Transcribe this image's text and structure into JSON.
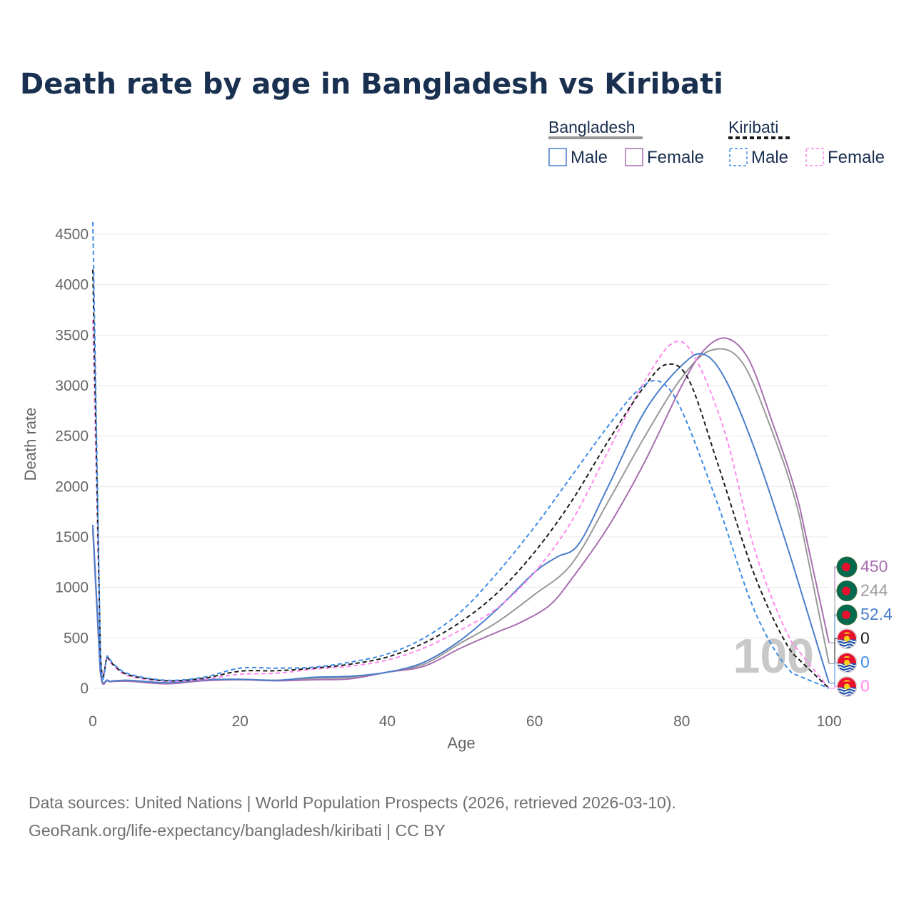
{
  "title": "Death rate by age in Bangladesh vs Kiribati",
  "legend": {
    "groups": [
      {
        "name": "Bangladesh",
        "items": [
          "Male",
          "Female"
        ]
      },
      {
        "name": "Kiribati",
        "items": [
          "Male",
          "Female"
        ]
      }
    ]
  },
  "watermark": "100",
  "source_line1": "Data sources: United Nations | World Population Prospects (2026, retrieved 2026-03-10).",
  "source_line2": "GeoRank.org/life-expectancy/bangladesh/kiribati | CC BY",
  "colors": {
    "bd_male": "#4a7ec9",
    "bd_female": "#a86fb0",
    "bd_total": "#999999",
    "ki_male": "#3d8be8",
    "ki_female": "#ff88ee",
    "ki_total": "#1a1a1a",
    "title": "#1a3050"
  },
  "chart_data": {
    "type": "line",
    "title": "Death rate by age in Bangladesh vs Kiribati",
    "xlabel": "Age",
    "ylabel": "Death rate",
    "xlim": [
      0,
      100
    ],
    "ylim": [
      0,
      4500
    ],
    "xticks": [
      0,
      20,
      40,
      60,
      80,
      100
    ],
    "yticks": [
      0,
      500,
      1000,
      1500,
      2000,
      2500,
      3000,
      3500,
      4000,
      4500
    ],
    "series": [
      {
        "key": "bd_total",
        "name": "Bangladesh",
        "style": "solid",
        "points": [
          [
            0,
            1590
          ],
          [
            1,
            190
          ],
          [
            2,
            80
          ],
          [
            3,
            75
          ],
          [
            5,
            75
          ],
          [
            10,
            50
          ],
          [
            15,
            80
          ],
          [
            20,
            88
          ],
          [
            25,
            80
          ],
          [
            30,
            100
          ],
          [
            35,
            110
          ],
          [
            40,
            160
          ],
          [
            45,
            240
          ],
          [
            50,
            450
          ],
          [
            55,
            660
          ],
          [
            60,
            930
          ],
          [
            65,
            1230
          ],
          [
            70,
            1850
          ],
          [
            75,
            2500
          ],
          [
            80,
            3080
          ],
          [
            84,
            3350
          ],
          [
            88,
            3250
          ],
          [
            92,
            2600
          ],
          [
            96,
            1700
          ],
          [
            100,
            244
          ]
        ]
      },
      {
        "key": "bd_male",
        "name": "Male",
        "style": "solid",
        "points": [
          [
            0,
            1620
          ],
          [
            1,
            200
          ],
          [
            2,
            80
          ],
          [
            3,
            75
          ],
          [
            5,
            80
          ],
          [
            10,
            55
          ],
          [
            15,
            85
          ],
          [
            20,
            90
          ],
          [
            25,
            80
          ],
          [
            30,
            110
          ],
          [
            35,
            120
          ],
          [
            40,
            160
          ],
          [
            45,
            260
          ],
          [
            50,
            480
          ],
          [
            55,
            790
          ],
          [
            60,
            1150
          ],
          [
            63,
            1300
          ],
          [
            66,
            1430
          ],
          [
            70,
            2000
          ],
          [
            75,
            2750
          ],
          [
            80,
            3200
          ],
          [
            83,
            3310
          ],
          [
            86,
            3050
          ],
          [
            90,
            2350
          ],
          [
            95,
            1250
          ],
          [
            100,
            52.4
          ]
        ]
      },
      {
        "key": "bd_female",
        "name": "Female",
        "style": "solid",
        "points": [
          [
            0,
            1560
          ],
          [
            1,
            180
          ],
          [
            2,
            75
          ],
          [
            3,
            70
          ],
          [
            5,
            70
          ],
          [
            10,
            45
          ],
          [
            15,
            75
          ],
          [
            20,
            85
          ],
          [
            25,
            75
          ],
          [
            30,
            85
          ],
          [
            35,
            95
          ],
          [
            40,
            160
          ],
          [
            45,
            220
          ],
          [
            50,
            400
          ],
          [
            55,
            560
          ],
          [
            58,
            650
          ],
          [
            62,
            820
          ],
          [
            65,
            1080
          ],
          [
            70,
            1600
          ],
          [
            75,
            2250
          ],
          [
            80,
            3000
          ],
          [
            83,
            3350
          ],
          [
            86,
            3470
          ],
          [
            89,
            3270
          ],
          [
            92,
            2700
          ],
          [
            96,
            1800
          ],
          [
            100,
            450
          ]
        ]
      },
      {
        "key": "ki_total",
        "name": "Kiribati",
        "style": "dash",
        "points": [
          [
            0,
            4150
          ],
          [
            1,
            420
          ],
          [
            2,
            310
          ],
          [
            3,
            220
          ],
          [
            5,
            130
          ],
          [
            10,
            75
          ],
          [
            15,
            100
          ],
          [
            20,
            170
          ],
          [
            25,
            175
          ],
          [
            30,
            200
          ],
          [
            35,
            240
          ],
          [
            40,
            310
          ],
          [
            45,
            450
          ],
          [
            50,
            660
          ],
          [
            55,
            950
          ],
          [
            60,
            1350
          ],
          [
            65,
            1850
          ],
          [
            70,
            2450
          ],
          [
            75,
            3000
          ],
          [
            78,
            3210
          ],
          [
            81,
            3050
          ],
          [
            85,
            2200
          ],
          [
            90,
            1100
          ],
          [
            95,
            350
          ],
          [
            100,
            0
          ]
        ]
      },
      {
        "key": "ki_male",
        "name": "Male",
        "style": "dash",
        "points": [
          [
            0,
            4620
          ],
          [
            1,
            430
          ],
          [
            2,
            320
          ],
          [
            3,
            230
          ],
          [
            5,
            140
          ],
          [
            10,
            80
          ],
          [
            15,
            110
          ],
          [
            20,
            200
          ],
          [
            25,
            200
          ],
          [
            30,
            210
          ],
          [
            35,
            260
          ],
          [
            40,
            340
          ],
          [
            45,
            500
          ],
          [
            50,
            760
          ],
          [
            55,
            1150
          ],
          [
            60,
            1600
          ],
          [
            65,
            2100
          ],
          [
            70,
            2600
          ],
          [
            74,
            2950
          ],
          [
            77,
            3040
          ],
          [
            80,
            2750
          ],
          [
            85,
            1800
          ],
          [
            90,
            750
          ],
          [
            95,
            150
          ],
          [
            100,
            0
          ]
        ]
      },
      {
        "key": "ki_female",
        "name": "Female",
        "style": "dash",
        "points": [
          [
            0,
            3650
          ],
          [
            1,
            400
          ],
          [
            2,
            300
          ],
          [
            3,
            210
          ],
          [
            5,
            120
          ],
          [
            10,
            70
          ],
          [
            15,
            90
          ],
          [
            20,
            140
          ],
          [
            25,
            150
          ],
          [
            30,
            190
          ],
          [
            35,
            220
          ],
          [
            40,
            280
          ],
          [
            45,
            400
          ],
          [
            50,
            580
          ],
          [
            55,
            800
          ],
          [
            60,
            1150
          ],
          [
            65,
            1650
          ],
          [
            70,
            2350
          ],
          [
            75,
            3050
          ],
          [
            79,
            3430
          ],
          [
            82,
            3250
          ],
          [
            86,
            2500
          ],
          [
            90,
            1350
          ],
          [
            95,
            450
          ],
          [
            100,
            0
          ]
        ]
      }
    ],
    "end_labels": [
      {
        "key": "bd_female",
        "label": "450",
        "flag": "bangladesh"
      },
      {
        "key": "bd_total",
        "label": "244",
        "flag": "bangladesh"
      },
      {
        "key": "bd_male",
        "label": "52.4",
        "flag": "bangladesh"
      },
      {
        "key": "ki_total",
        "label": "0",
        "flag": "kiribati"
      },
      {
        "key": "ki_male",
        "label": "0",
        "flag": "kiribati"
      },
      {
        "key": "ki_female",
        "label": "0",
        "flag": "kiribati"
      }
    ]
  }
}
